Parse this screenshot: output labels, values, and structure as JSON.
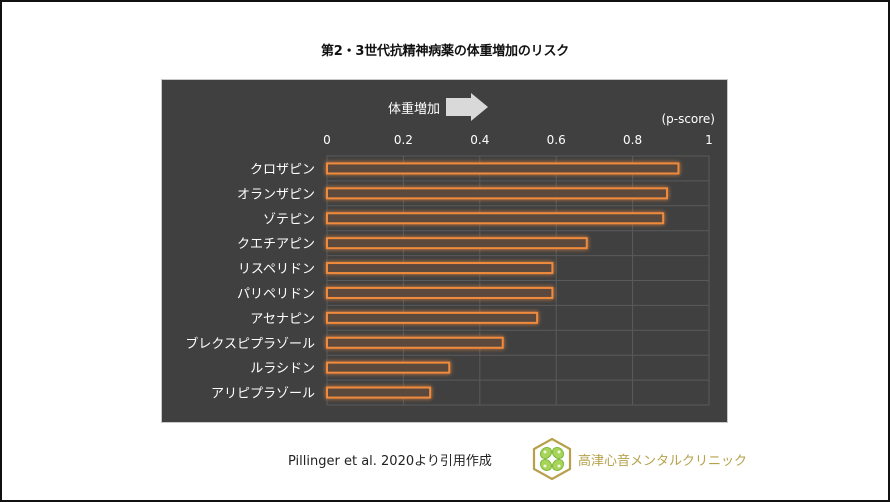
{
  "slide": {
    "title": "第2・3世代抗精神病薬の体重増加のリスク",
    "source": "Pillinger et al. 2020より引用作成",
    "clinic_name": "高津心音メンタルクリニック",
    "logo_icon": "clover-hexagon-logo-icon"
  },
  "colors": {
    "chart_background": "#404040",
    "bar_border": "#f08a3c",
    "bar_fill": "#5c4a3e",
    "gridline": "#5a5a5a",
    "text": "#ffffff",
    "arrow": "#d9d9d9",
    "clinic_text": "#b5a24a",
    "logo_gold": "#b8a04a",
    "logo_green": "#8cc63f"
  },
  "chart_data": {
    "type": "bar",
    "orientation": "horizontal",
    "title": "第2・3世代抗精神病薬の体重増加のリスク",
    "annotation": "体重増加",
    "annotation_icon": "right-arrow-icon",
    "xlabel": "(p-score)",
    "ylabel": "",
    "xlim": [
      0,
      1
    ],
    "xticks": [
      "0",
      "0.2",
      "0.4",
      "0.6",
      "0.8",
      "1"
    ],
    "xtick_values": [
      0,
      0.2,
      0.4,
      0.6,
      0.8,
      1
    ],
    "grid": true,
    "legend": "none",
    "categories": [
      "クロザピン",
      "オランザピン",
      "ゾテピン",
      "クエチアピン",
      "リスペリドン",
      "パリペリドン",
      "アセナピン",
      "ブレクスピプラゾール",
      "ルラシドン",
      "アリピプラゾール"
    ],
    "values": [
      0.92,
      0.89,
      0.88,
      0.68,
      0.59,
      0.59,
      0.55,
      0.46,
      0.32,
      0.27
    ]
  }
}
